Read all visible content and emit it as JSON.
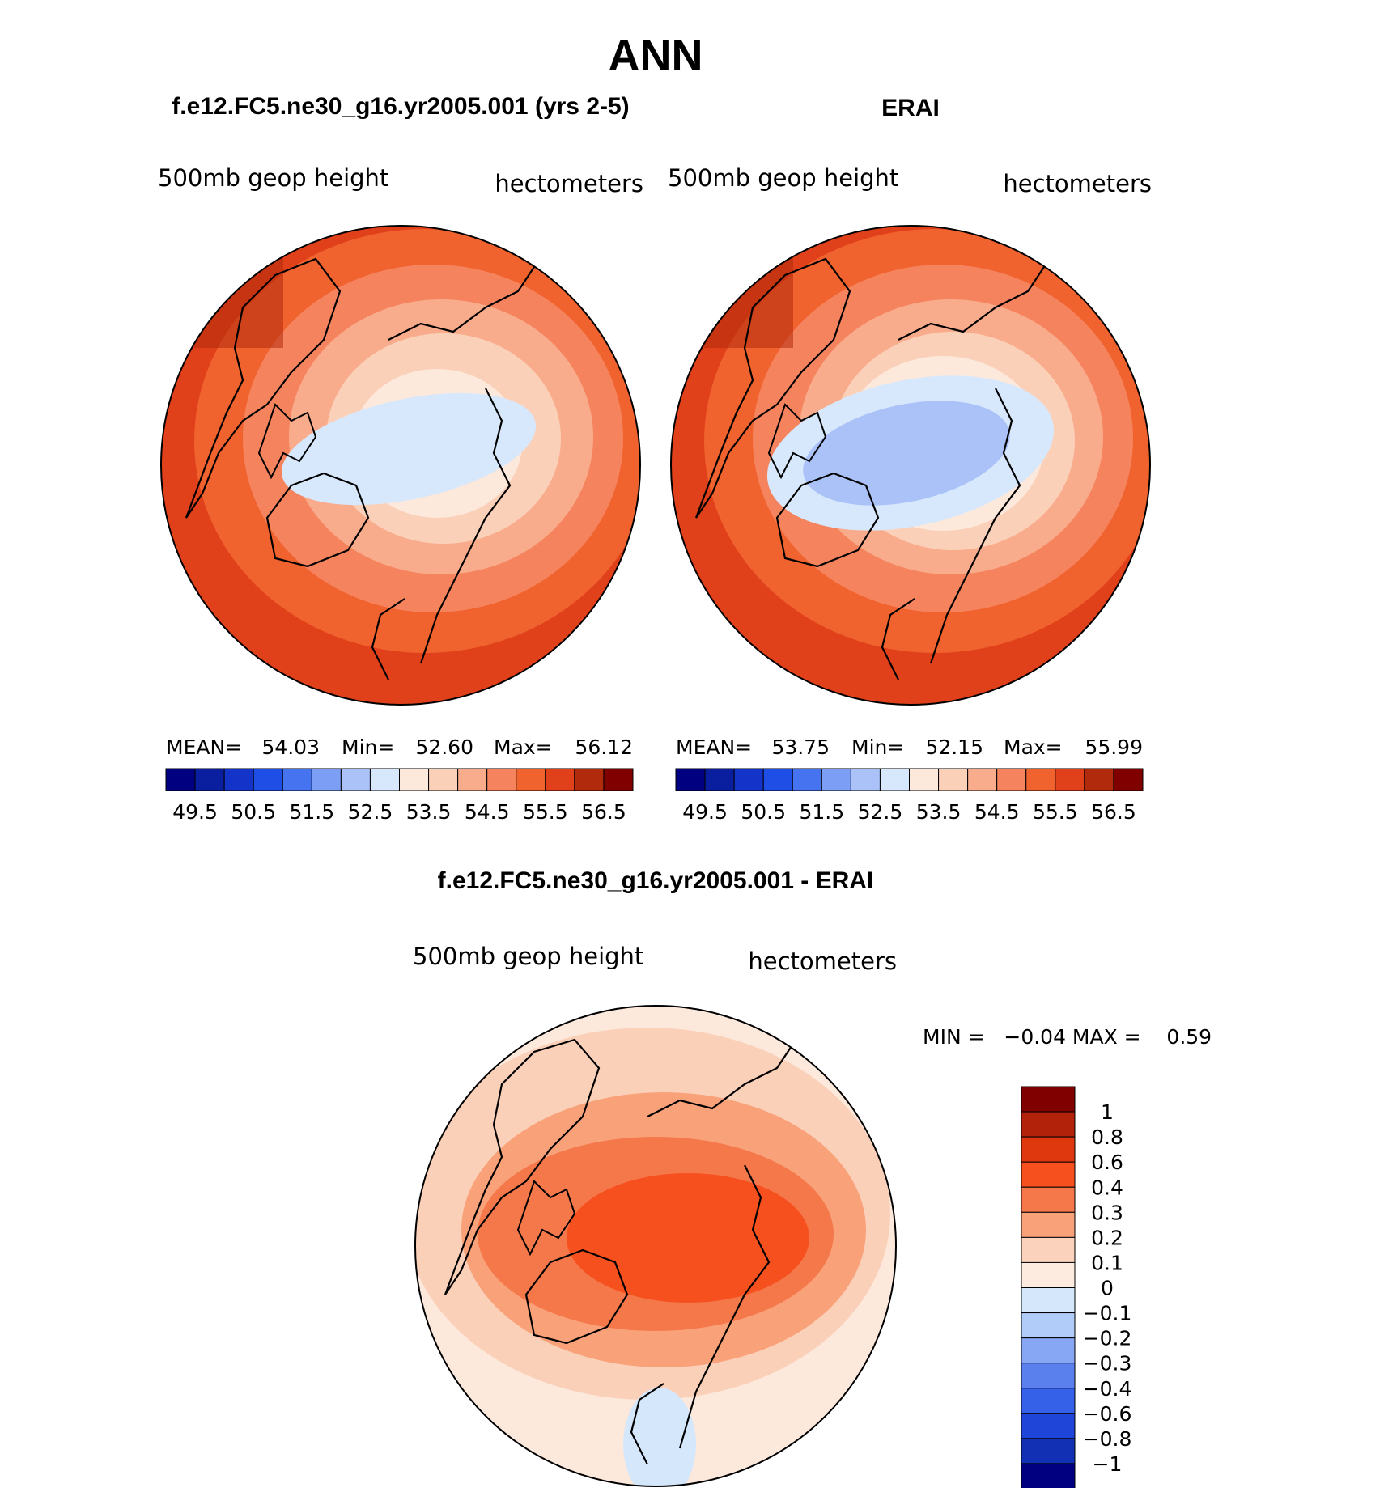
{
  "main_title": "ANN",
  "panels": [
    {
      "title": "f.e12.FC5.ne30_g16.yr2005.001 (yrs 2-5)",
      "left_label": "500mb geop height",
      "right_label": "hectometers",
      "stats": {
        "mean_label": "MEAN=",
        "mean": "54.03",
        "min_label": "Min=",
        "min": "52.60",
        "max_label": "Max=",
        "max": "56.12"
      }
    },
    {
      "title": "ERAI",
      "left_label": "500mb geop height",
      "right_label": "hectometers",
      "stats": {
        "mean_label": "MEAN=",
        "mean": "53.75",
        "min_label": "Min=",
        "min": "52.15",
        "max_label": "Max=",
        "max": "55.99"
      }
    }
  ],
  "colorbar": {
    "colors": [
      "#000080",
      "#0a1ea0",
      "#1433c8",
      "#1f4ee6",
      "#4673f0",
      "#7d9ef5",
      "#aac2f8",
      "#d7e8fc",
      "#fde8dc",
      "#fbd0b9",
      "#f9ac8c",
      "#f5845e",
      "#f0622e",
      "#e0401a",
      "#b22a0c",
      "#800000"
    ],
    "ticks": [
      "49.5",
      "50.5",
      "51.5",
      "52.5",
      "53.5",
      "54.5",
      "55.5",
      "56.5"
    ]
  },
  "diff": {
    "title": "f.e12.FC5.ne30_g16.yr2005.001 - ERAI",
    "left_label": "500mb geop height",
    "right_label": "hectometers",
    "minmax": "MIN =   −0.04 MAX =    0.59",
    "colorbar": {
      "colors": [
        "#800000",
        "#b2220a",
        "#e0380e",
        "#f5501e",
        "#f5784b",
        "#f9a27a",
        "#fbd2bc",
        "#fdebdf",
        "#d5e8fb",
        "#b1ccf8",
        "#87a6f3",
        "#5a80ee",
        "#3560e8",
        "#1f45d8",
        "#1230b4",
        "#000080"
      ],
      "labels": [
        "1",
        "0.8",
        "0.6",
        "0.4",
        "0.3",
        "0.2",
        "0.1",
        "0",
        "−0.1",
        "−0.2",
        "−0.3",
        "−0.4",
        "−0.6",
        "−0.8",
        "−1"
      ]
    }
  },
  "map_field_colors": {
    "model": [
      "#e0401a",
      "#f0622e",
      "#f5845e",
      "#f9ac8c",
      "#fbd0b9",
      "#fde8dc",
      "#d7e8fc"
    ],
    "obs": [
      "#e0401a",
      "#f0622e",
      "#f5845e",
      "#f9ac8c",
      "#fbd0b9",
      "#fde8dc",
      "#d7e8fc",
      "#aac2f8"
    ],
    "diff": [
      "#fde8dc",
      "#fbd0b9",
      "#f9a27a",
      "#f5784b",
      "#f5501e",
      "#d5e8fb"
    ]
  }
}
